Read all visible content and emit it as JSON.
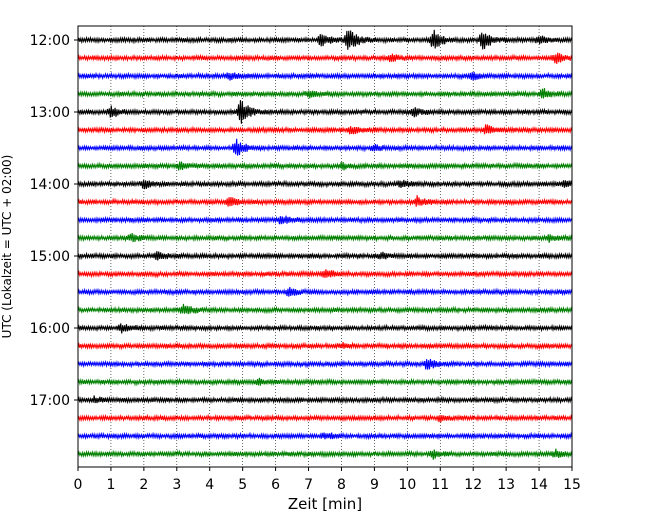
{
  "chart_data": {
    "type": "line",
    "title": "",
    "xlabel": "Zeit  [min]",
    "ylabel": "UTC (Lokalzeit = UTC + 02:00)",
    "xlim": [
      0,
      15
    ],
    "x_ticks": [
      0,
      1,
      2,
      3,
      4,
      5,
      6,
      7,
      8,
      9,
      10,
      11,
      12,
      13,
      14,
      15
    ],
    "x_tick_labels": [
      "0",
      "1",
      "2",
      "3",
      "4",
      "5",
      "6",
      "7",
      "8",
      "9",
      "10",
      "11",
      "12",
      "13",
      "14",
      "15"
    ],
    "y_tick_labels": [
      "12:00",
      "13:00",
      "14:00",
      "15:00",
      "16:00",
      "17:00"
    ],
    "y_tick_rows": [
      0,
      4,
      8,
      12,
      16,
      20
    ],
    "grid": "vertical-dotted",
    "colors": [
      "#000000",
      "#ff0000",
      "#0000ff",
      "#008000"
    ],
    "traces": [
      {
        "start": "12:00",
        "color": "#000000",
        "events": [
          {
            "t": 7.4,
            "amp": 0.5
          },
          {
            "t": 8.2,
            "amp": 1.0
          },
          {
            "t": 10.8,
            "amp": 0.85
          },
          {
            "t": 12.3,
            "amp": 0.8
          },
          {
            "t": 14.0,
            "amp": 0.3
          }
        ]
      },
      {
        "start": "12:15",
        "color": "#ff0000",
        "events": [
          {
            "t": 9.5,
            "amp": 0.3
          },
          {
            "t": 14.5,
            "amp": 0.4
          }
        ]
      },
      {
        "start": "12:30",
        "color": "#0000ff",
        "events": [
          {
            "t": 4.6,
            "amp": 0.25
          },
          {
            "t": 12.0,
            "amp": 0.3
          }
        ]
      },
      {
        "start": "12:45",
        "color": "#008000",
        "events": [
          {
            "t": 7.0,
            "amp": 0.25
          },
          {
            "t": 14.1,
            "amp": 0.4
          }
        ]
      },
      {
        "start": "13:00",
        "color": "#000000",
        "events": [
          {
            "t": 1.0,
            "amp": 0.4
          },
          {
            "t": 4.95,
            "amp": 1.0
          },
          {
            "t": 10.2,
            "amp": 0.3
          }
        ]
      },
      {
        "start": "13:15",
        "color": "#ff0000",
        "events": [
          {
            "t": 8.3,
            "amp": 0.3
          },
          {
            "t": 12.4,
            "amp": 0.4
          }
        ]
      },
      {
        "start": "13:30",
        "color": "#0000ff",
        "events": [
          {
            "t": 4.8,
            "amp": 0.7
          },
          {
            "t": 9.0,
            "amp": 0.25
          }
        ]
      },
      {
        "start": "13:45",
        "color": "#008000",
        "events": [
          {
            "t": 3.1,
            "amp": 0.3
          },
          {
            "t": 8.0,
            "amp": 0.25
          }
        ]
      },
      {
        "start": "14:00",
        "color": "#000000",
        "events": [
          {
            "t": 2.0,
            "amp": 0.35
          },
          {
            "t": 9.8,
            "amp": 0.3
          },
          {
            "t": 14.8,
            "amp": 0.3
          }
        ]
      },
      {
        "start": "14:15",
        "color": "#ff0000",
        "events": [
          {
            "t": 4.6,
            "amp": 0.35
          },
          {
            "t": 10.3,
            "amp": 0.4
          }
        ]
      },
      {
        "start": "14:30",
        "color": "#0000ff",
        "events": [
          {
            "t": 6.2,
            "amp": 0.35
          }
        ]
      },
      {
        "start": "14:45",
        "color": "#008000",
        "events": [
          {
            "t": 1.6,
            "amp": 0.3
          },
          {
            "t": 14.3,
            "amp": 0.25
          }
        ]
      },
      {
        "start": "15:00",
        "color": "#000000",
        "events": [
          {
            "t": 2.4,
            "amp": 0.3
          },
          {
            "t": 9.2,
            "amp": 0.25
          }
        ]
      },
      {
        "start": "15:15",
        "color": "#ff0000",
        "events": [
          {
            "t": 7.5,
            "amp": 0.35
          }
        ]
      },
      {
        "start": "15:30",
        "color": "#0000ff",
        "events": [
          {
            "t": 6.4,
            "amp": 0.3
          }
        ]
      },
      {
        "start": "15:45",
        "color": "#008000",
        "events": [
          {
            "t": 3.2,
            "amp": 0.45
          }
        ]
      },
      {
        "start": "16:00",
        "color": "#000000",
        "events": [
          {
            "t": 1.3,
            "amp": 0.35
          }
        ]
      },
      {
        "start": "16:15",
        "color": "#ff0000",
        "events": [
          {
            "t": 8.0,
            "amp": 0.2
          }
        ]
      },
      {
        "start": "16:30",
        "color": "#0000ff",
        "events": [
          {
            "t": 10.6,
            "amp": 0.45
          }
        ]
      },
      {
        "start": "16:45",
        "color": "#008000",
        "events": [
          {
            "t": 5.5,
            "amp": 0.2
          }
        ]
      },
      {
        "start": "17:00",
        "color": "#000000",
        "events": [
          {
            "t": 0.5,
            "amp": 0.25
          }
        ]
      },
      {
        "start": "17:15",
        "color": "#ff0000",
        "events": [
          {
            "t": 11.0,
            "amp": 0.2
          }
        ]
      },
      {
        "start": "17:30",
        "color": "#0000ff",
        "events": [
          {
            "t": 7.5,
            "amp": 0.2
          }
        ]
      },
      {
        "start": "17:45",
        "color": "#008000",
        "events": [
          {
            "t": 10.8,
            "amp": 0.3
          },
          {
            "t": 14.5,
            "amp": 0.3
          }
        ]
      }
    ]
  }
}
